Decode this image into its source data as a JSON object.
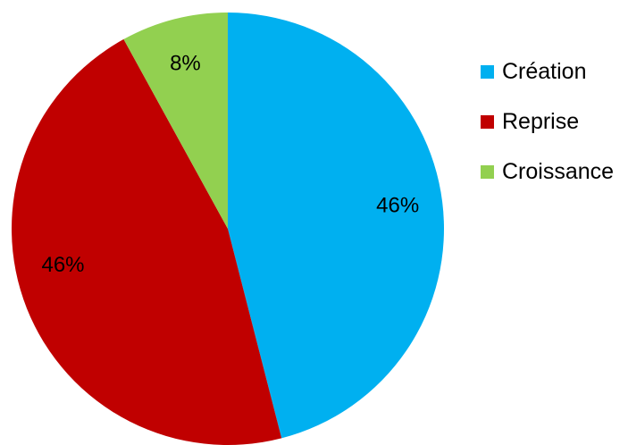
{
  "chart_data": {
    "type": "pie",
    "title": "",
    "slices": [
      {
        "label": "Création",
        "value": 46,
        "value_label": "46%",
        "color": "#00B0F0"
      },
      {
        "label": "Reprise",
        "value": 46,
        "value_label": "46%",
        "color": "#C00000"
      },
      {
        "label": "Croissance",
        "value": 8,
        "value_label": "8%",
        "color": "#92D050"
      }
    ],
    "start_angle": "12 o'clock",
    "direction": "clockwise",
    "legend_position": "right"
  }
}
